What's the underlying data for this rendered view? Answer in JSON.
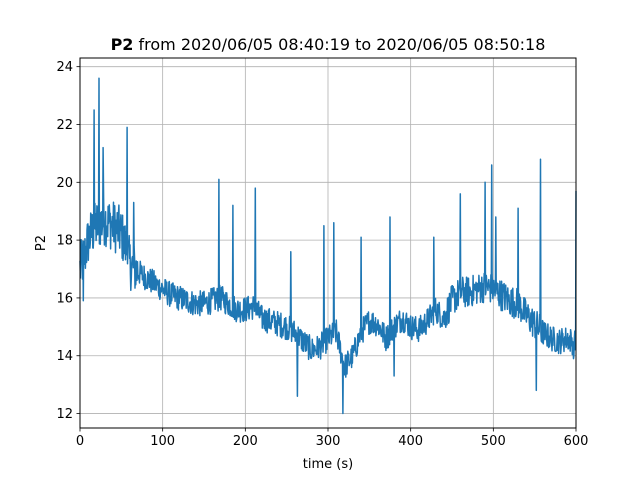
{
  "chart_data": {
    "type": "line",
    "title_bold": "P2",
    "title_rest": " from 2020/06/05 08:40:19 to 2020/06/05 08:50:18",
    "xlabel": "time (s)",
    "ylabel": "P2",
    "xlim": [
      0,
      600
    ],
    "ylim": [
      11.5,
      24.3
    ],
    "xticks": [
      0,
      100,
      200,
      300,
      400,
      500,
      600
    ],
    "yticks": [
      12,
      14,
      16,
      18,
      20,
      22,
      24
    ],
    "xtick_labels": [
      "0",
      "100",
      "200",
      "300",
      "400",
      "500",
      "600"
    ],
    "ytick_labels": [
      "12",
      "14",
      "16",
      "18",
      "20",
      "22",
      "24"
    ],
    "grid": true,
    "series": [
      {
        "color": "#1f77b4",
        "x": [
          0,
          5,
          10,
          15,
          20,
          25,
          30,
          35,
          40,
          45,
          50,
          55,
          60,
          70,
          80,
          90,
          100,
          110,
          120,
          130,
          140,
          150,
          160,
          170,
          180,
          190,
          200,
          210,
          220,
          230,
          240,
          250,
          260,
          270,
          280,
          290,
          300,
          310,
          320,
          330,
          340,
          350,
          360,
          370,
          380,
          390,
          400,
          410,
          420,
          430,
          440,
          450,
          460,
          470,
          480,
          490,
          500,
          510,
          520,
          530,
          540,
          550,
          560,
          570,
          580,
          590,
          600
        ],
        "y": [
          17.0,
          17.4,
          18.0,
          18.3,
          18.5,
          18.6,
          18.7,
          18.6,
          18.5,
          18.4,
          18.2,
          17.8,
          17.2,
          16.9,
          16.7,
          16.5,
          16.3,
          16.1,
          16.0,
          15.9,
          15.8,
          15.8,
          15.9,
          16.0,
          15.8,
          15.6,
          15.6,
          15.7,
          15.3,
          15.2,
          15.1,
          15.0,
          14.8,
          14.5,
          14.2,
          14.3,
          14.6,
          14.8,
          13.6,
          14.0,
          14.8,
          15.2,
          15.1,
          14.6,
          15.0,
          15.3,
          15.0,
          14.9,
          15.2,
          15.6,
          15.3,
          15.9,
          16.2,
          16.2,
          16.3,
          16.4,
          16.3,
          16.1,
          15.9,
          15.8,
          15.4,
          15.1,
          14.8,
          14.6,
          14.5,
          14.6,
          14.4
        ]
      }
    ],
    "spikes": [
      {
        "x": 4,
        "y": 15.9
      },
      {
        "x": 17,
        "y": 22.5
      },
      {
        "x": 23,
        "y": 23.6
      },
      {
        "x": 28,
        "y": 21.2
      },
      {
        "x": 57,
        "y": 21.9
      },
      {
        "x": 65,
        "y": 19.3
      },
      {
        "x": 168,
        "y": 20.1
      },
      {
        "x": 185,
        "y": 19.2
      },
      {
        "x": 212,
        "y": 19.8
      },
      {
        "x": 255,
        "y": 17.6
      },
      {
        "x": 263,
        "y": 12.6
      },
      {
        "x": 295,
        "y": 18.5
      },
      {
        "x": 307,
        "y": 18.6
      },
      {
        "x": 318,
        "y": 12.0
      },
      {
        "x": 340,
        "y": 18.1
      },
      {
        "x": 375,
        "y": 18.8
      },
      {
        "x": 380,
        "y": 13.3
      },
      {
        "x": 428,
        "y": 18.1
      },
      {
        "x": 460,
        "y": 19.6
      },
      {
        "x": 490,
        "y": 20.0
      },
      {
        "x": 498,
        "y": 20.6
      },
      {
        "x": 503,
        "y": 18.8
      },
      {
        "x": 530,
        "y": 19.1
      },
      {
        "x": 552,
        "y": 12.8
      },
      {
        "x": 557,
        "y": 20.8
      },
      {
        "x": 597,
        "y": 13.9
      },
      {
        "x": 600,
        "y": 19.7
      }
    ]
  }
}
